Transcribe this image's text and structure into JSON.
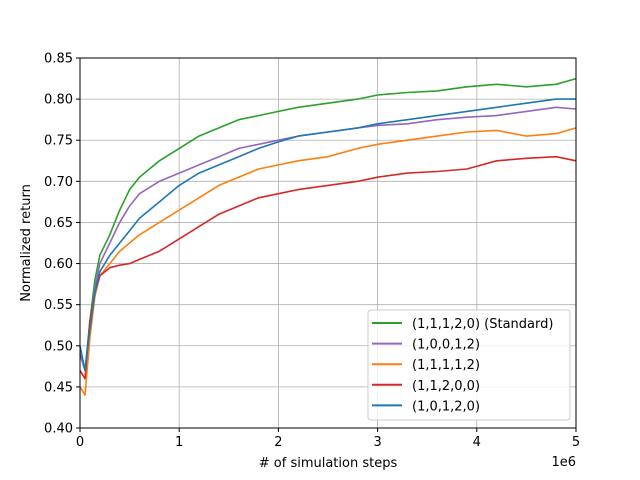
{
  "chart_data": {
    "type": "line",
    "title": "",
    "xlabel": "# of simulation steps",
    "ylabel": "Normalized return",
    "x_offset_label": "1e6",
    "xlim": [
      0,
      5
    ],
    "ylim": [
      0.4,
      0.85
    ],
    "x_ticks": [
      0,
      1,
      2,
      3,
      4,
      5
    ],
    "x_tick_labels": [
      "0",
      "1",
      "2",
      "3",
      "4",
      "5"
    ],
    "y_ticks": [
      0.4,
      0.45,
      0.5,
      0.55,
      0.6,
      0.65,
      0.7,
      0.75,
      0.8,
      0.85
    ],
    "y_tick_labels": [
      "0.40",
      "0.45",
      "0.50",
      "0.55",
      "0.60",
      "0.65",
      "0.70",
      "0.75",
      "0.80",
      "0.85"
    ],
    "grid": true,
    "legend_position": "lower-right",
    "series": [
      {
        "name": "(1,1,1,2,0) (Standard)",
        "color": "#2ca02c",
        "x": [
          0,
          0.05,
          0.1,
          0.15,
          0.2,
          0.3,
          0.4,
          0.5,
          0.6,
          0.8,
          1.0,
          1.2,
          1.4,
          1.6,
          1.8,
          2.0,
          2.2,
          2.5,
          2.8,
          3.0,
          3.3,
          3.6,
          3.9,
          4.2,
          4.5,
          4.8,
          5.0
        ],
        "y": [
          0.49,
          0.47,
          0.53,
          0.58,
          0.61,
          0.635,
          0.665,
          0.69,
          0.705,
          0.725,
          0.74,
          0.755,
          0.765,
          0.775,
          0.78,
          0.785,
          0.79,
          0.795,
          0.8,
          0.805,
          0.808,
          0.81,
          0.815,
          0.818,
          0.815,
          0.818,
          0.825
        ]
      },
      {
        "name": "(1,0,0,1,2)",
        "color": "#9467bd",
        "x": [
          0,
          0.05,
          0.1,
          0.15,
          0.2,
          0.3,
          0.4,
          0.5,
          0.6,
          0.8,
          1.0,
          1.2,
          1.4,
          1.6,
          1.8,
          2.0,
          2.2,
          2.5,
          2.8,
          3.0,
          3.3,
          3.6,
          3.9,
          4.2,
          4.5,
          4.8,
          5.0
        ],
        "y": [
          0.49,
          0.47,
          0.52,
          0.57,
          0.6,
          0.625,
          0.65,
          0.67,
          0.685,
          0.7,
          0.71,
          0.72,
          0.73,
          0.74,
          0.745,
          0.75,
          0.755,
          0.76,
          0.765,
          0.768,
          0.77,
          0.775,
          0.778,
          0.78,
          0.785,
          0.79,
          0.788
        ]
      },
      {
        "name": "(1,1,1,1,2)",
        "color": "#ff7f0e",
        "x": [
          0,
          0.05,
          0.1,
          0.15,
          0.2,
          0.3,
          0.4,
          0.5,
          0.6,
          0.8,
          1.0,
          1.2,
          1.4,
          1.6,
          1.8,
          2.0,
          2.2,
          2.5,
          2.8,
          3.0,
          3.3,
          3.6,
          3.9,
          4.2,
          4.5,
          4.8,
          5.0
        ],
        "y": [
          0.45,
          0.44,
          0.51,
          0.56,
          0.585,
          0.6,
          0.615,
          0.625,
          0.635,
          0.65,
          0.665,
          0.68,
          0.695,
          0.705,
          0.715,
          0.72,
          0.725,
          0.73,
          0.74,
          0.745,
          0.75,
          0.755,
          0.76,
          0.762,
          0.755,
          0.758,
          0.765
        ]
      },
      {
        "name": "(1,1,2,0,0)",
        "color": "#d62728",
        "x": [
          0,
          0.05,
          0.1,
          0.15,
          0.2,
          0.3,
          0.4,
          0.5,
          0.6,
          0.8,
          1.0,
          1.2,
          1.4,
          1.6,
          1.8,
          2.0,
          2.2,
          2.5,
          2.8,
          3.0,
          3.3,
          3.6,
          3.9,
          4.2,
          4.5,
          4.8,
          5.0
        ],
        "y": [
          0.47,
          0.46,
          0.53,
          0.565,
          0.585,
          0.595,
          0.598,
          0.6,
          0.605,
          0.615,
          0.63,
          0.645,
          0.66,
          0.67,
          0.68,
          0.685,
          0.69,
          0.695,
          0.7,
          0.705,
          0.71,
          0.712,
          0.715,
          0.725,
          0.728,
          0.73,
          0.725
        ]
      },
      {
        "name": "(1,0,1,2,0)",
        "color": "#1f77b4",
        "x": [
          0,
          0.05,
          0.1,
          0.15,
          0.2,
          0.3,
          0.4,
          0.5,
          0.6,
          0.8,
          1.0,
          1.2,
          1.4,
          1.6,
          1.8,
          2.0,
          2.2,
          2.5,
          2.8,
          3.0,
          3.3,
          3.6,
          3.9,
          4.2,
          4.5,
          4.8,
          5.0
        ],
        "y": [
          0.5,
          0.47,
          0.52,
          0.565,
          0.59,
          0.61,
          0.625,
          0.64,
          0.655,
          0.675,
          0.695,
          0.71,
          0.72,
          0.73,
          0.74,
          0.748,
          0.755,
          0.76,
          0.765,
          0.77,
          0.775,
          0.78,
          0.785,
          0.79,
          0.795,
          0.8,
          0.8
        ]
      }
    ]
  }
}
